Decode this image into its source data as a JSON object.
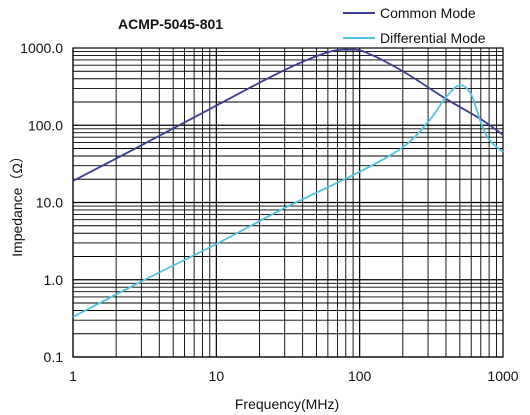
{
  "chart_data": {
    "type": "line",
    "title": "ACMP-5045-801",
    "xlabel": "Frequency(MHz)",
    "ylabel": "Impedance（Ω）",
    "xscale": "log",
    "yscale": "log",
    "xlim": [
      1,
      1000
    ],
    "ylim": [
      0.1,
      1000
    ],
    "x_tick_labels": [
      "1",
      "10",
      "100",
      "1000"
    ],
    "y_tick_labels": [
      "0.1",
      "1.0",
      "10.0",
      "100.0",
      "1000.0"
    ],
    "grid": true,
    "legend_position": "top-right",
    "series": [
      {
        "name": "Common Mode",
        "color": "#3a3f8f",
        "points": [
          [
            1,
            19
          ],
          [
            3,
            55
          ],
          [
            10,
            180
          ],
          [
            30,
            520
          ],
          [
            60,
            880
          ],
          [
            85,
            950
          ],
          [
            110,
            880
          ],
          [
            200,
            500
          ],
          [
            400,
            220
          ],
          [
            700,
            120
          ],
          [
            1000,
            75
          ]
        ]
      },
      {
        "name": "Differential Mode",
        "color": "#4fc3e0",
        "points": [
          [
            1,
            0.33
          ],
          [
            3,
            0.95
          ],
          [
            10,
            2.9
          ],
          [
            30,
            8.5
          ],
          [
            100,
            25
          ],
          [
            200,
            52
          ],
          [
            300,
            110
          ],
          [
            400,
            230
          ],
          [
            500,
            330
          ],
          [
            600,
            250
          ],
          [
            700,
            110
          ],
          [
            800,
            65
          ],
          [
            1000,
            45
          ]
        ]
      }
    ]
  }
}
